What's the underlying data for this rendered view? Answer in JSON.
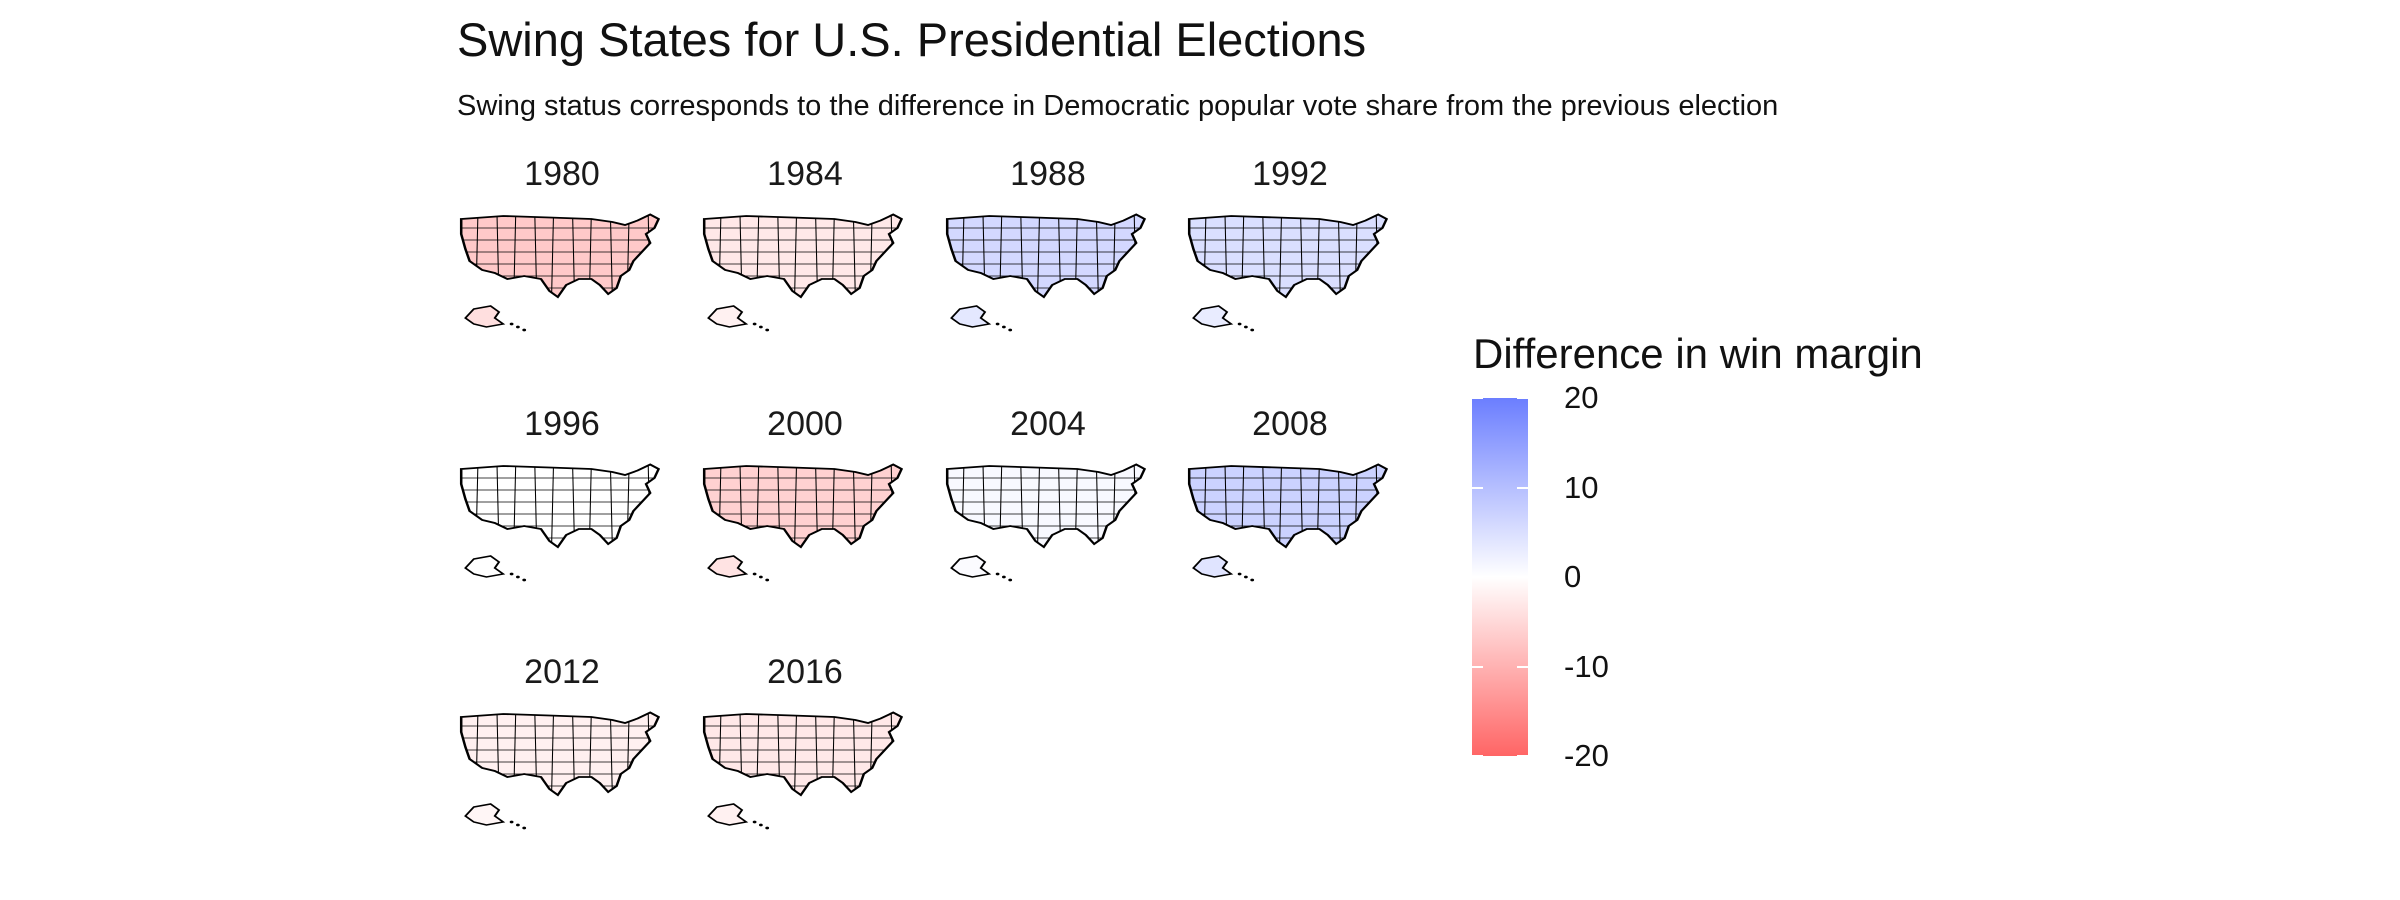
{
  "title": "Swing States for U.S. Presidential Elections",
  "subtitle": "Swing status corresponds to the difference in Democratic popular vote share from the previous election",
  "panels": [
    {
      "year": "1980",
      "shade": -7
    },
    {
      "year": "1984",
      "shade": -3
    },
    {
      "year": "1988",
      "shade": 6
    },
    {
      "year": "1992",
      "shade": 5
    },
    {
      "year": "1996",
      "shade": 0
    },
    {
      "year": "2000",
      "shade": -6
    },
    {
      "year": "2004",
      "shade": 1
    },
    {
      "year": "2008",
      "shade": 7
    },
    {
      "year": "2012",
      "shade": -2
    },
    {
      "year": "2016",
      "shade": -3
    }
  ],
  "legend": {
    "title": "Difference in win margin",
    "ticks": [
      "20",
      "10",
      "0",
      "-10",
      "-20"
    ],
    "tick_values": [
      20,
      10,
      0,
      -10,
      -20
    ],
    "high_color": "#6b7eff",
    "mid_color": "#ffffff",
    "low_color": "#ff6565"
  }
}
